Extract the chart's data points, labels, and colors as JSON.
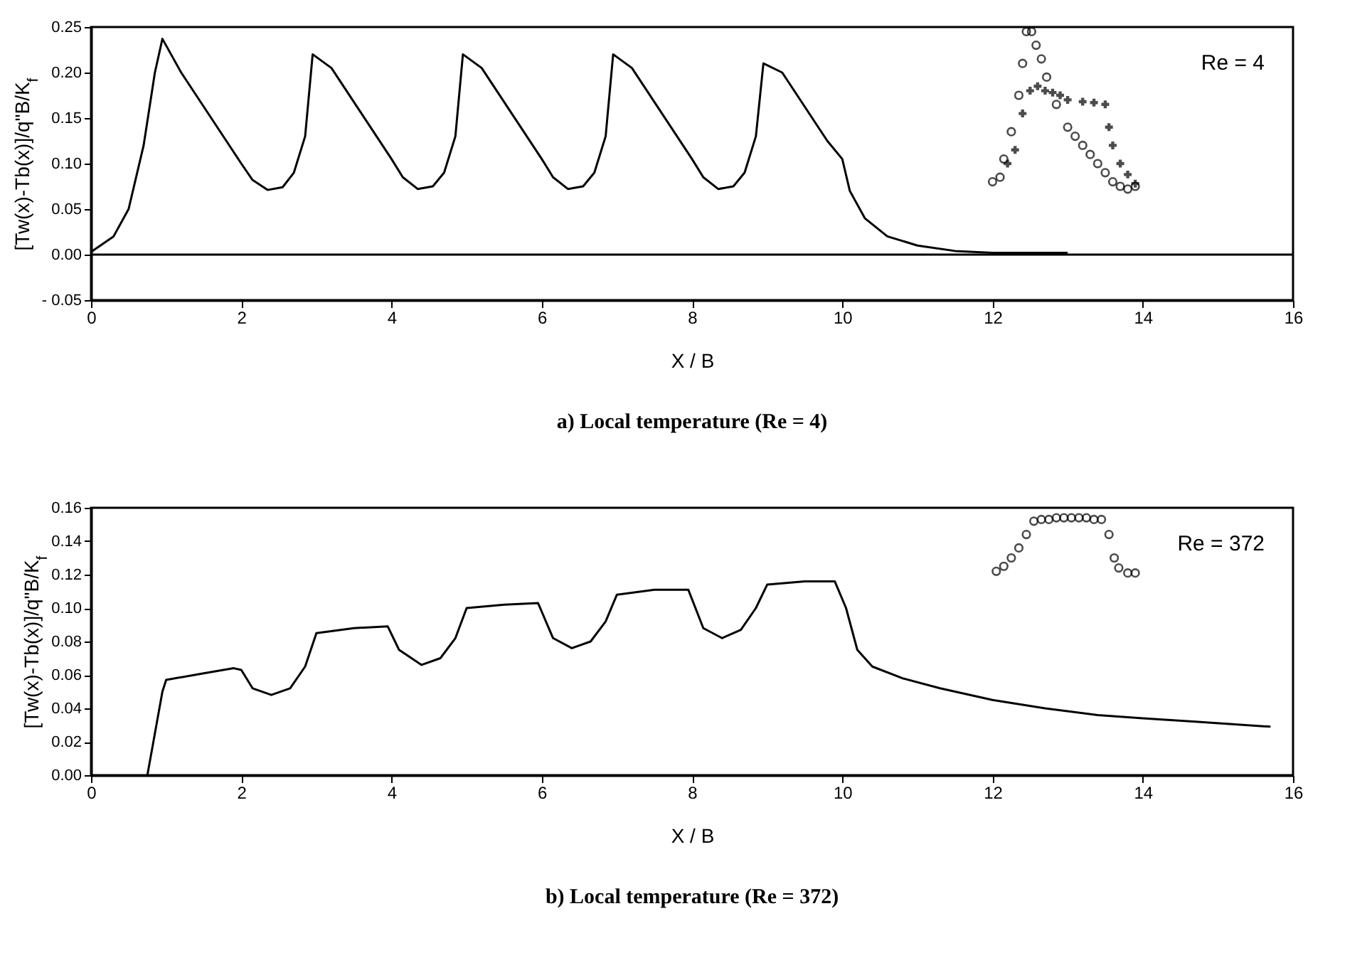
{
  "chart_data": [
    {
      "type": "line",
      "title": "a) Local temperature (Re = 4)",
      "xlabel": "X / B",
      "ylabel": "[Tw(x)-Tb(x)]/q\"B/K$_{f}$",
      "annotations": [
        "Re = 4"
      ],
      "xlim": [
        0,
        16
      ],
      "ylim": [
        -0.05,
        0.25
      ],
      "xticks": [
        0,
        2,
        4,
        6,
        8,
        10,
        12,
        14,
        16
      ],
      "yticks": [
        {
          "value": -0.05,
          "label": "- 0.05"
        },
        {
          "value": 0,
          "label": "0.00"
        },
        {
          "value": 0.05,
          "label": "0.05"
        },
        {
          "value": 0.1,
          "label": "0.10"
        },
        {
          "value": 0.15,
          "label": "0.15"
        },
        {
          "value": 0.2,
          "label": "0.20"
        },
        {
          "value": 0.25,
          "label": "0.25"
        }
      ],
      "grid": false,
      "legend": false,
      "ref_lines": [
        {
          "axis": "y",
          "value": 0,
          "color": "#000000"
        }
      ],
      "series": [
        {
          "type": "line",
          "color": "#000000",
          "marker": "none",
          "line_style": "solid",
          "x": [
            0,
            0.3,
            0.5,
            0.7,
            0.85,
            0.95,
            1.2,
            1.4,
            1.6,
            1.8,
            2.0,
            2.15,
            2.35,
            2.55,
            2.7,
            2.85,
            2.95,
            3.2,
            3.4,
            3.6,
            3.8,
            4.0,
            4.15,
            4.35,
            4.55,
            4.7,
            4.85,
            4.95,
            5.2,
            5.4,
            5.6,
            5.8,
            6.0,
            6.15,
            6.35,
            6.55,
            6.7,
            6.85,
            6.95,
            7.2,
            7.4,
            7.6,
            7.8,
            8.0,
            8.15,
            8.35,
            8.55,
            8.7,
            8.85,
            8.95,
            9.2,
            9.4,
            9.6,
            9.8,
            10.0,
            10.1,
            10.3,
            10.6,
            11,
            11.5,
            12,
            13
          ],
          "values": [
            0.003,
            0.02,
            0.05,
            0.12,
            0.2,
            0.237,
            0.2,
            0.175,
            0.15,
            0.125,
            0.1,
            0.082,
            0.071,
            0.074,
            0.09,
            0.13,
            0.22,
            0.205,
            0.18,
            0.155,
            0.13,
            0.105,
            0.085,
            0.072,
            0.075,
            0.09,
            0.13,
            0.22,
            0.205,
            0.18,
            0.155,
            0.13,
            0.105,
            0.085,
            0.072,
            0.075,
            0.09,
            0.13,
            0.22,
            0.205,
            0.18,
            0.155,
            0.13,
            0.105,
            0.085,
            0.072,
            0.075,
            0.09,
            0.13,
            0.21,
            0.2,
            0.175,
            0.15,
            0.125,
            0.105,
            0.07,
            0.04,
            0.02,
            0.01,
            0.004,
            0.002,
            0.002
          ]
        },
        {
          "type": "scatter",
          "color": "#000000",
          "marker": "circle",
          "x": [
            12.0,
            12.1,
            12.15,
            12.25,
            12.35,
            12.4,
            12.45,
            12.52,
            12.58,
            12.65,
            12.72,
            12.85,
            13.0,
            13.1,
            13.2,
            13.3,
            13.4,
            13.5,
            13.6,
            13.7,
            13.8,
            13.9
          ],
          "values": [
            0.08,
            0.085,
            0.105,
            0.135,
            0.175,
            0.21,
            0.245,
            0.245,
            0.23,
            0.215,
            0.195,
            0.165,
            0.14,
            0.13,
            0.12,
            0.11,
            0.1,
            0.09,
            0.08,
            0.075,
            0.072,
            0.075
          ]
        },
        {
          "type": "scatter",
          "color": "#000000",
          "marker": "cross",
          "x": [
            12.2,
            12.3,
            12.4,
            12.5,
            12.6,
            12.7,
            12.8,
            12.9,
            13.0,
            13.2,
            13.35,
            13.5,
            13.55,
            13.6,
            13.7,
            13.8,
            13.9
          ],
          "values": [
            0.1,
            0.115,
            0.155,
            0.18,
            0.185,
            0.18,
            0.178,
            0.175,
            0.17,
            0.168,
            0.167,
            0.165,
            0.14,
            0.12,
            0.1,
            0.088,
            0.078
          ]
        }
      ]
    },
    {
      "type": "line",
      "title": "b) Local temperature (Re = 372)",
      "xlabel": "X / B",
      "ylabel": "[Tw(x)-Tb(x)]/q\"B/K$_{f}$",
      "annotations": [
        "Re = 372"
      ],
      "xlim": [
        0,
        16
      ],
      "ylim": [
        0,
        0.16
      ],
      "xticks": [
        0,
        2,
        4,
        6,
        8,
        10,
        12,
        14,
        16
      ],
      "yticks": [
        {
          "value": 0,
          "label": "0.00"
        },
        {
          "value": 0.02,
          "label": "0.02"
        },
        {
          "value": 0.04,
          "label": "0.04"
        },
        {
          "value": 0.06,
          "label": "0.06"
        },
        {
          "value": 0.08,
          "label": "0.08"
        },
        {
          "value": 0.1,
          "label": "0.10"
        },
        {
          "value": 0.12,
          "label": "0.12"
        },
        {
          "value": 0.14,
          "label": "0.14"
        },
        {
          "value": 0.16,
          "label": "0.16"
        }
      ],
      "grid": false,
      "legend": false,
      "series": [
        {
          "type": "line",
          "color": "#000000",
          "marker": "none",
          "line_style": "solid",
          "x": [
            0.75,
            0.85,
            0.95,
            1.0,
            1.5,
            1.9,
            2.0,
            2.15,
            2.4,
            2.65,
            2.85,
            3.0,
            3.5,
            3.95,
            4.1,
            4.4,
            4.65,
            4.85,
            5.0,
            5.5,
            5.95,
            6.15,
            6.4,
            6.65,
            6.85,
            7.0,
            7.5,
            7.95,
            8.15,
            8.4,
            8.65,
            8.85,
            9.0,
            9.5,
            9.9,
            10.05,
            10.2,
            10.4,
            10.8,
            11.3,
            12,
            12.7,
            13.4,
            14,
            14.7,
            15.7
          ],
          "values": [
            0,
            0.025,
            0.05,
            0.057,
            0.061,
            0.064,
            0.063,
            0.052,
            0.048,
            0.052,
            0.065,
            0.085,
            0.088,
            0.089,
            0.075,
            0.066,
            0.07,
            0.082,
            0.1,
            0.102,
            0.103,
            0.082,
            0.076,
            0.08,
            0.092,
            0.108,
            0.111,
            0.111,
            0.088,
            0.082,
            0.087,
            0.1,
            0.114,
            0.116,
            0.116,
            0.1,
            0.075,
            0.065,
            0.058,
            0.052,
            0.045,
            0.04,
            0.036,
            0.034,
            0.032,
            0.029
          ]
        },
        {
          "type": "scatter",
          "color": "#000000",
          "marker": "circle",
          "x": [
            12.05,
            12.15,
            12.25,
            12.35,
            12.45,
            12.55,
            12.65,
            12.75,
            12.85,
            12.95,
            13.05,
            13.15,
            13.25,
            13.35,
            13.45,
            13.55,
            13.62,
            13.68,
            13.8,
            13.9
          ],
          "values": [
            0.122,
            0.125,
            0.13,
            0.136,
            0.144,
            0.152,
            0.153,
            0.153,
            0.154,
            0.154,
            0.154,
            0.154,
            0.154,
            0.153,
            0.153,
            0.144,
            0.13,
            0.124,
            0.121,
            0.121
          ]
        }
      ]
    }
  ]
}
